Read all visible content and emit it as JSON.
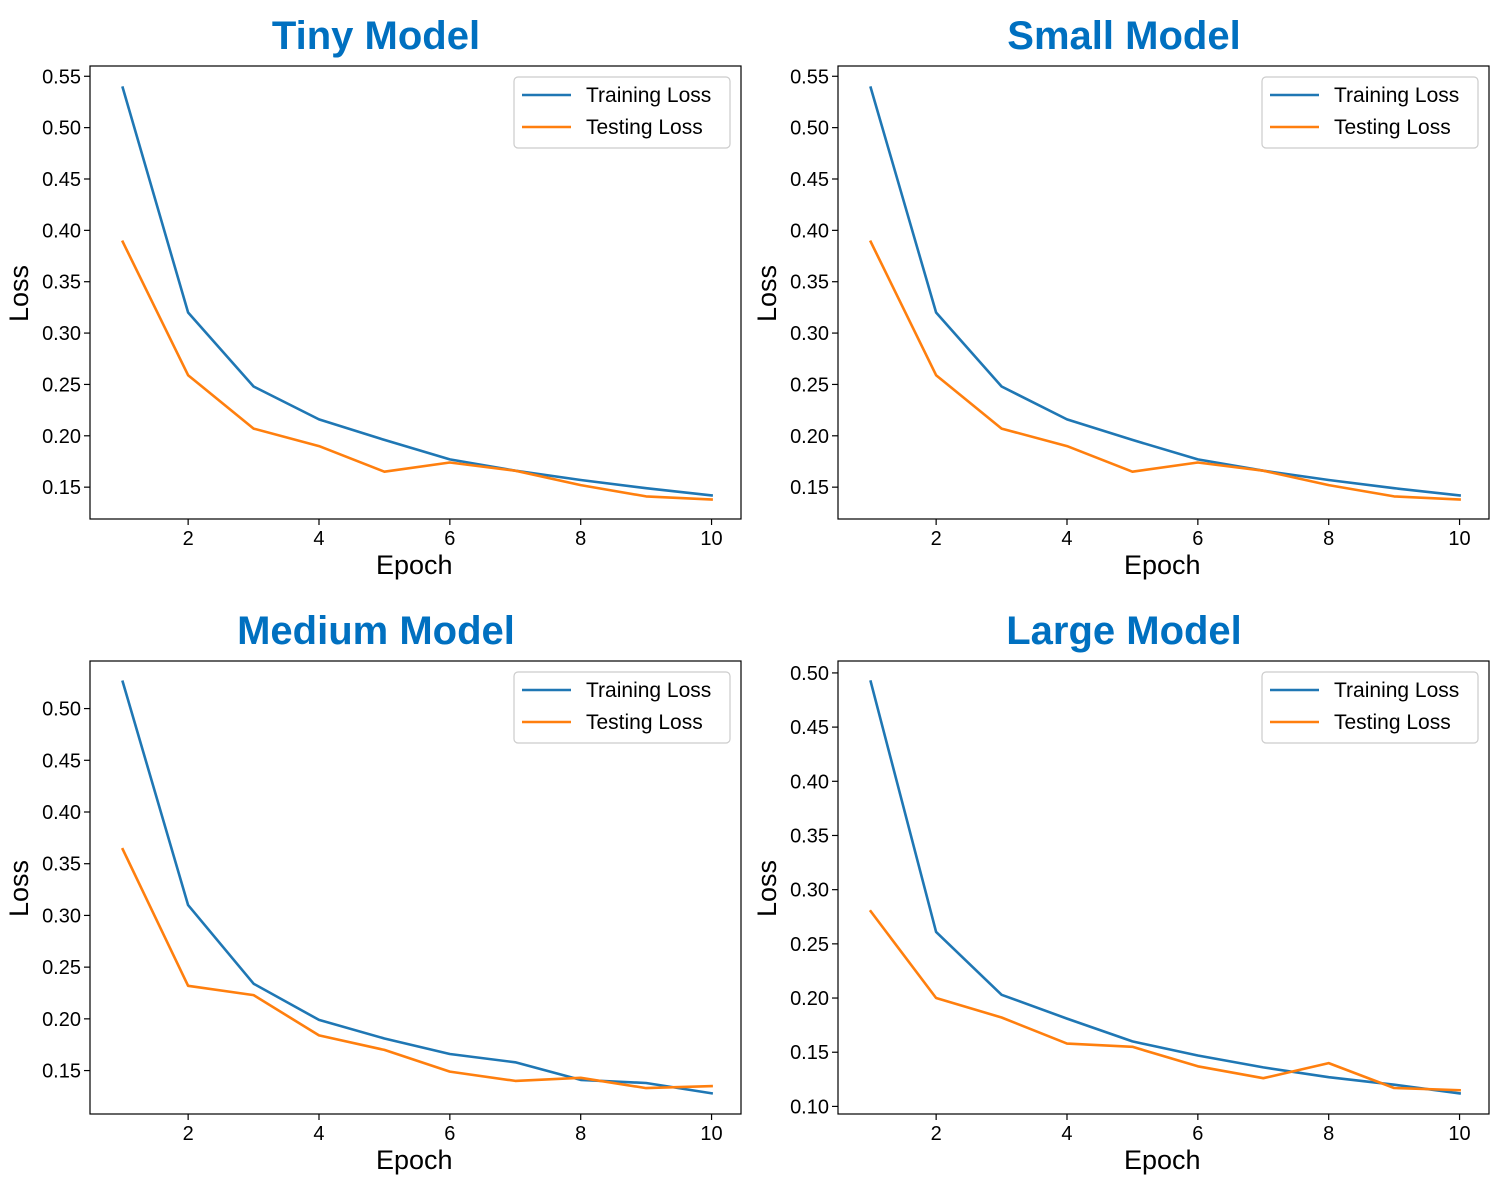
{
  "colors": {
    "title": "#0070c0",
    "training": "#1f77b4",
    "testing": "#ff7f0e"
  },
  "chart_data": [
    {
      "type": "line",
      "title": "Tiny Model",
      "xlabel": "Epoch",
      "ylabel": "Loss",
      "x": [
        1,
        2,
        3,
        4,
        5,
        6,
        7,
        8,
        9,
        10
      ],
      "xticks": [
        2,
        4,
        6,
        8,
        10
      ],
      "xtick_labels": [
        "2",
        "4",
        "6",
        "8",
        "10"
      ],
      "xlim": [
        0.5,
        10.45
      ],
      "ylim": [
        0.119,
        0.56
      ],
      "yticks": [
        0.15,
        0.2,
        0.25,
        0.3,
        0.35,
        0.4,
        0.45,
        0.5,
        0.55
      ],
      "ytick_labels": [
        "0.15",
        "0.20",
        "0.25",
        "0.30",
        "0.35",
        "0.40",
        "0.45",
        "0.50",
        "0.55"
      ],
      "legend_position": "upper right",
      "series": [
        {
          "name": "Training Loss",
          "values": [
            0.539,
            0.32,
            0.248,
            0.216,
            0.196,
            0.177,
            0.166,
            0.157,
            0.149,
            0.142
          ]
        },
        {
          "name": "Testing Loss",
          "values": [
            0.389,
            0.259,
            0.207,
            0.19,
            0.165,
            0.174,
            0.166,
            0.152,
            0.141,
            0.138
          ]
        }
      ]
    },
    {
      "type": "line",
      "title": "Small Model",
      "xlabel": "Epoch",
      "ylabel": "Loss",
      "x": [
        1,
        2,
        3,
        4,
        5,
        6,
        7,
        8,
        9,
        10
      ],
      "xticks": [
        2,
        4,
        6,
        8,
        10
      ],
      "xtick_labels": [
        "2",
        "4",
        "6",
        "8",
        "10"
      ],
      "xlim": [
        0.5,
        10.45
      ],
      "ylim": [
        0.119,
        0.56
      ],
      "yticks": [
        0.15,
        0.2,
        0.25,
        0.3,
        0.35,
        0.4,
        0.45,
        0.5,
        0.55
      ],
      "ytick_labels": [
        "0.15",
        "0.20",
        "0.25",
        "0.30",
        "0.35",
        "0.40",
        "0.45",
        "0.50",
        "0.55"
      ],
      "legend_position": "upper right",
      "series": [
        {
          "name": "Training Loss",
          "values": [
            0.539,
            0.32,
            0.248,
            0.216,
            0.196,
            0.177,
            0.166,
            0.157,
            0.149,
            0.142
          ]
        },
        {
          "name": "Testing Loss",
          "values": [
            0.389,
            0.259,
            0.207,
            0.19,
            0.165,
            0.174,
            0.166,
            0.152,
            0.141,
            0.138
          ]
        }
      ]
    },
    {
      "type": "line",
      "title": "Medium Model",
      "xlabel": "Epoch",
      "ylabel": "Loss",
      "x": [
        1,
        2,
        3,
        4,
        5,
        6,
        7,
        8,
        9,
        10
      ],
      "xticks": [
        2,
        4,
        6,
        8,
        10
      ],
      "xtick_labels": [
        "2",
        "4",
        "6",
        "8",
        "10"
      ],
      "xlim": [
        0.5,
        10.45
      ],
      "ylim": [
        0.108,
        0.546
      ],
      "yticks": [
        0.15,
        0.2,
        0.25,
        0.3,
        0.35,
        0.4,
        0.45,
        0.5
      ],
      "ytick_labels": [
        "0.15",
        "0.20",
        "0.25",
        "0.30",
        "0.35",
        "0.40",
        "0.45",
        "0.50"
      ],
      "legend_position": "upper right",
      "series": [
        {
          "name": "Training Loss",
          "values": [
            0.526,
            0.31,
            0.234,
            0.199,
            0.181,
            0.166,
            0.158,
            0.141,
            0.138,
            0.128
          ]
        },
        {
          "name": "Testing Loss",
          "values": [
            0.364,
            0.232,
            0.223,
            0.184,
            0.17,
            0.149,
            0.14,
            0.143,
            0.133,
            0.135
          ]
        }
      ]
    },
    {
      "type": "line",
      "title": "Large Model",
      "xlabel": "Epoch",
      "ylabel": "Loss",
      "x": [
        1,
        2,
        3,
        4,
        5,
        6,
        7,
        8,
        9,
        10
      ],
      "xticks": [
        2,
        4,
        6,
        8,
        10
      ],
      "xtick_labels": [
        "2",
        "4",
        "6",
        "8",
        "10"
      ],
      "xlim": [
        0.5,
        10.45
      ],
      "ylim": [
        0.093,
        0.511
      ],
      "yticks": [
        0.1,
        0.15,
        0.2,
        0.25,
        0.3,
        0.35,
        0.4,
        0.45,
        0.5
      ],
      "ytick_labels": [
        "0.10",
        "0.15",
        "0.20",
        "0.25",
        "0.30",
        "0.35",
        "0.40",
        "0.45",
        "0.50"
      ],
      "legend_position": "upper right",
      "series": [
        {
          "name": "Training Loss",
          "values": [
            0.492,
            0.261,
            0.203,
            0.181,
            0.16,
            0.147,
            0.136,
            0.127,
            0.12,
            0.112
          ]
        },
        {
          "name": "Testing Loss",
          "values": [
            0.28,
            0.2,
            0.182,
            0.158,
            0.155,
            0.137,
            0.126,
            0.14,
            0.117,
            0.115
          ]
        }
      ]
    }
  ]
}
